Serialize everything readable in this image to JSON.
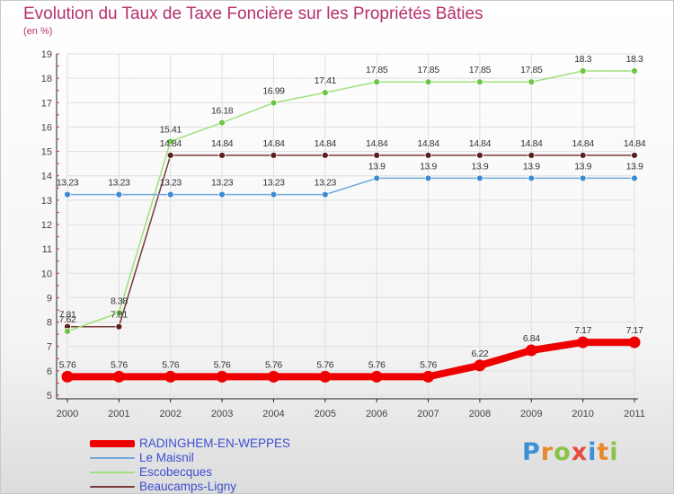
{
  "chart_data": {
    "type": "line",
    "title": "Evolution du Taux de Taxe Foncière sur les Propriétés Bâties",
    "subtitle": "(en %)",
    "categories": [
      "2000",
      "2001",
      "2002",
      "2003",
      "2004",
      "2005",
      "2006",
      "2007",
      "2008",
      "2009",
      "2010",
      "2011"
    ],
    "y_ticks": [
      "5",
      "6",
      "7",
      "8",
      "9",
      "10",
      "11",
      "12",
      "13",
      "14",
      "15",
      "16",
      "17",
      "18",
      "19"
    ],
    "ylim": [
      5,
      19
    ],
    "grid": true,
    "legend_position": "bottom-left",
    "series": [
      {
        "name": "RADINGHEM-EN-WEPPES",
        "color": "#ee0000",
        "marker_color": "#ee0000",
        "values": [
          5.76,
          5.76,
          5.76,
          5.76,
          5.76,
          5.76,
          5.76,
          5.76,
          6.22,
          6.84,
          7.17,
          7.17
        ],
        "labels": [
          "5.76",
          "5.76",
          "5.76",
          "5.76",
          "5.76",
          "5.76",
          "5.76",
          "5.76",
          "6.22",
          "6.84",
          "7.17",
          "7.17"
        ]
      },
      {
        "name": "Le Maisnil",
        "color": "#6fa8dc",
        "marker_color": "#3d8bd4",
        "values": [
          13.23,
          13.23,
          13.23,
          13.23,
          13.23,
          13.23,
          13.9,
          13.9,
          13.9,
          13.9,
          13.9,
          13.9
        ],
        "labels": [
          "13.23",
          "13.23",
          "13.23",
          "13.23",
          "13.23",
          "13.23",
          "13.9",
          "13.9",
          "13.9",
          "13.9",
          "13.9",
          "13.9"
        ]
      },
      {
        "name": "Escobecques",
        "color": "#9fe07a",
        "marker_color": "#6cc644",
        "values": [
          7.62,
          8.38,
          15.41,
          16.18,
          16.99,
          17.41,
          17.85,
          17.85,
          17.85,
          17.85,
          18.3,
          18.3
        ],
        "labels": [
          "7.62",
          "8.38",
          "15.41",
          "16.18",
          "16.99",
          "17.41",
          "17.85",
          "17.85",
          "17.85",
          "17.85",
          "18.3",
          "18.3"
        ]
      },
      {
        "name": "Beaucamps-Ligny",
        "color": "#7a3a3a",
        "marker_color": "#5a1f1f",
        "values": [
          7.81,
          7.81,
          14.84,
          14.84,
          14.84,
          14.84,
          14.84,
          14.84,
          14.84,
          14.84,
          14.84,
          14.84
        ],
        "labels": [
          "7.81",
          "7.81",
          "14.84",
          "14.84",
          "14.84",
          "14.84",
          "14.84",
          "14.84",
          "14.84",
          "14.84",
          "14.84",
          "14.84"
        ]
      }
    ]
  },
  "logo": {
    "letters": [
      "P",
      "r",
      "o",
      "x",
      "i",
      "t",
      "i"
    ],
    "colors": [
      "#3d8fd6",
      "#e8892b",
      "#8bc34a",
      "#e84b3c",
      "#3d8fd6",
      "#e8892b",
      "#8bc34a"
    ]
  }
}
